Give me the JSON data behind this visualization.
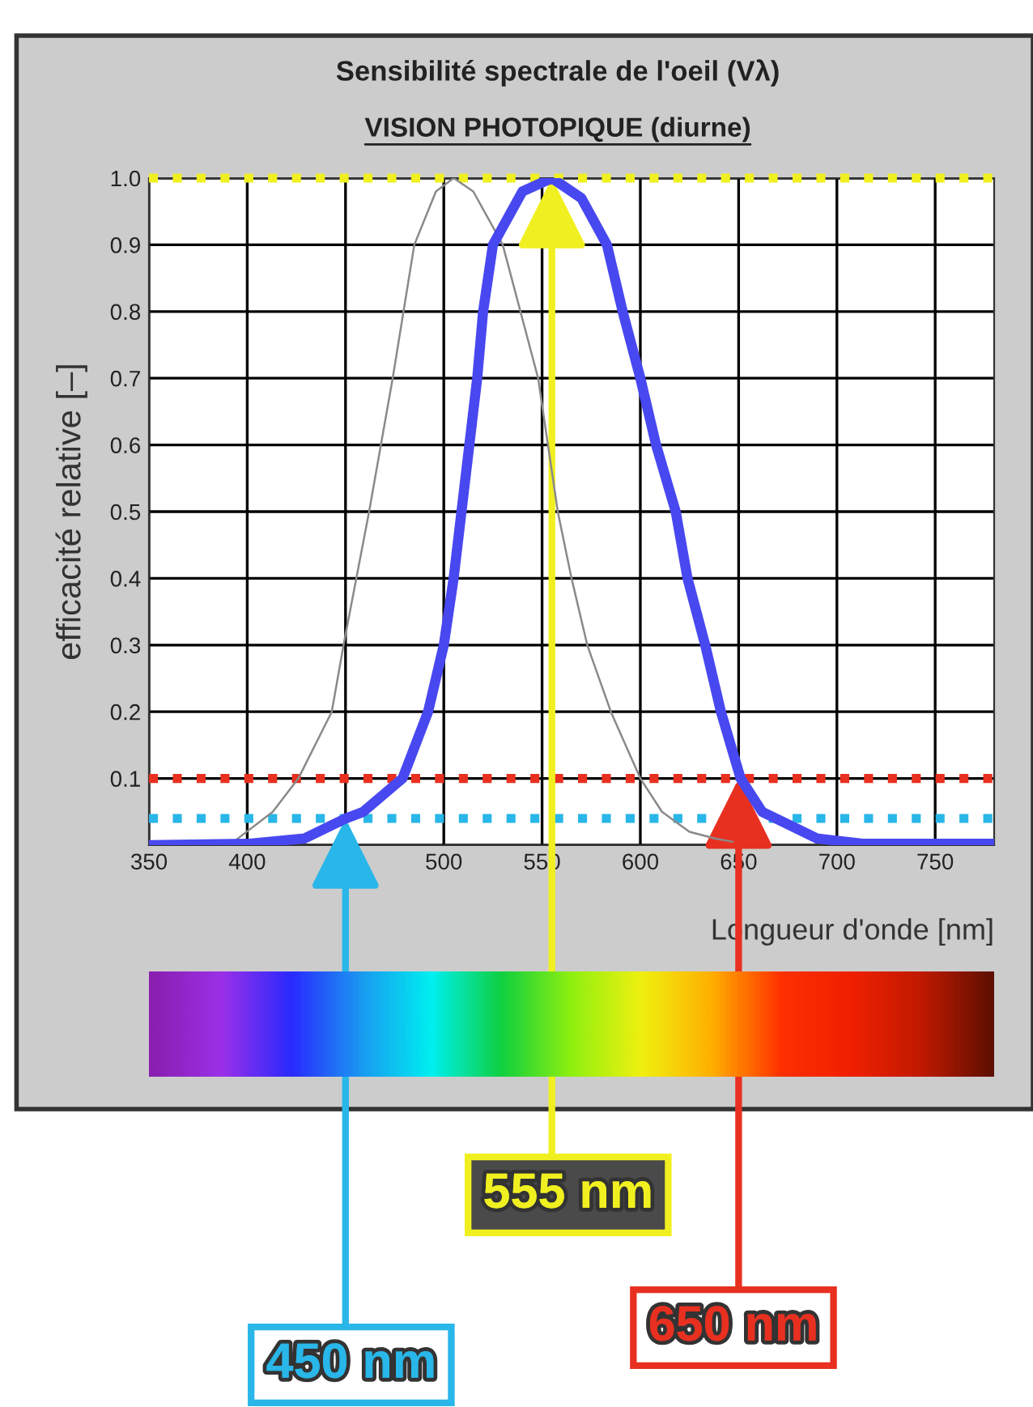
{
  "chart_data": {
    "type": "line",
    "title": "Sensibilité spectrale de l'oeil (Vλ)",
    "subtitle": "VISION PHOTOPIQUE (diurne)",
    "xlabel": "Longueur d'onde [nm]",
    "ylabel": "efficacité relative [–]",
    "series": [
      {
        "color": "#8a8a8a",
        "x": [
          380,
          393,
          413,
          426,
          443,
          449,
          462,
          474,
          485,
          496,
          505,
          515,
          530,
          548,
          558,
          565,
          573,
          585,
          600,
          611,
          625,
          638,
          647
        ],
        "values": [
          0,
          0.005,
          0.05,
          0.1,
          0.2,
          0.3,
          0.5,
          0.7,
          0.9,
          0.98,
          1.0,
          0.98,
          0.9,
          0.7,
          0.5,
          0.4,
          0.3,
          0.2,
          0.1,
          0.05,
          0.02,
          0.01,
          0.005
        ]
      },
      {
        "color": "#4848f0",
        "x": [
          350,
          400,
          429,
          450,
          459,
          479,
          492,
          500,
          505,
          509,
          513,
          517,
          520,
          525,
          540,
          555,
          570,
          583,
          591,
          600,
          608,
          618,
          624,
          633,
          641,
          651,
          662,
          690,
          714,
          780
        ],
        "values": [
          0,
          0.002,
          0.01,
          0.04,
          0.05,
          0.1,
          0.2,
          0.3,
          0.4,
          0.5,
          0.6,
          0.7,
          0.8,
          0.9,
          0.98,
          1.0,
          0.97,
          0.9,
          0.8,
          0.7,
          0.6,
          0.5,
          0.4,
          0.3,
          0.2,
          0.1,
          0.05,
          0.01,
          0.002,
          0.002
        ]
      }
    ],
    "xlim": [
      350,
      780
    ],
    "xticks": [
      350,
      400,
      {
        "value": 450,
        "label": null
      },
      500,
      550,
      600,
      650,
      700,
      750
    ],
    "ylim": [
      0,
      1
    ],
    "yticks": [
      {
        "value": 0,
        "label": null
      },
      0.1,
      0.2,
      0.3,
      0.4,
      0.5,
      0.6,
      0.7,
      0.8,
      0.9,
      {
        "value": 1,
        "label": "1.0"
      }
    ],
    "grid": true,
    "ref_lines": [
      {
        "axis": "y",
        "value": 0.04,
        "color": "#29b6e8",
        "line_style": "dotted"
      },
      {
        "axis": "y",
        "value": 1.0,
        "color": "#f0f020",
        "line_style": "dotted"
      },
      {
        "axis": "y",
        "value": 0.1,
        "color": "#e83020",
        "line_style": "dotted"
      }
    ],
    "annotations": [
      {
        "text": "450 nm",
        "x": 450,
        "y": 0.04
      },
      {
        "text": "555 nm",
        "x": 555,
        "y": 1.0
      },
      {
        "text": "650 nm",
        "x": 650,
        "y": 0.1
      }
    ]
  }
}
